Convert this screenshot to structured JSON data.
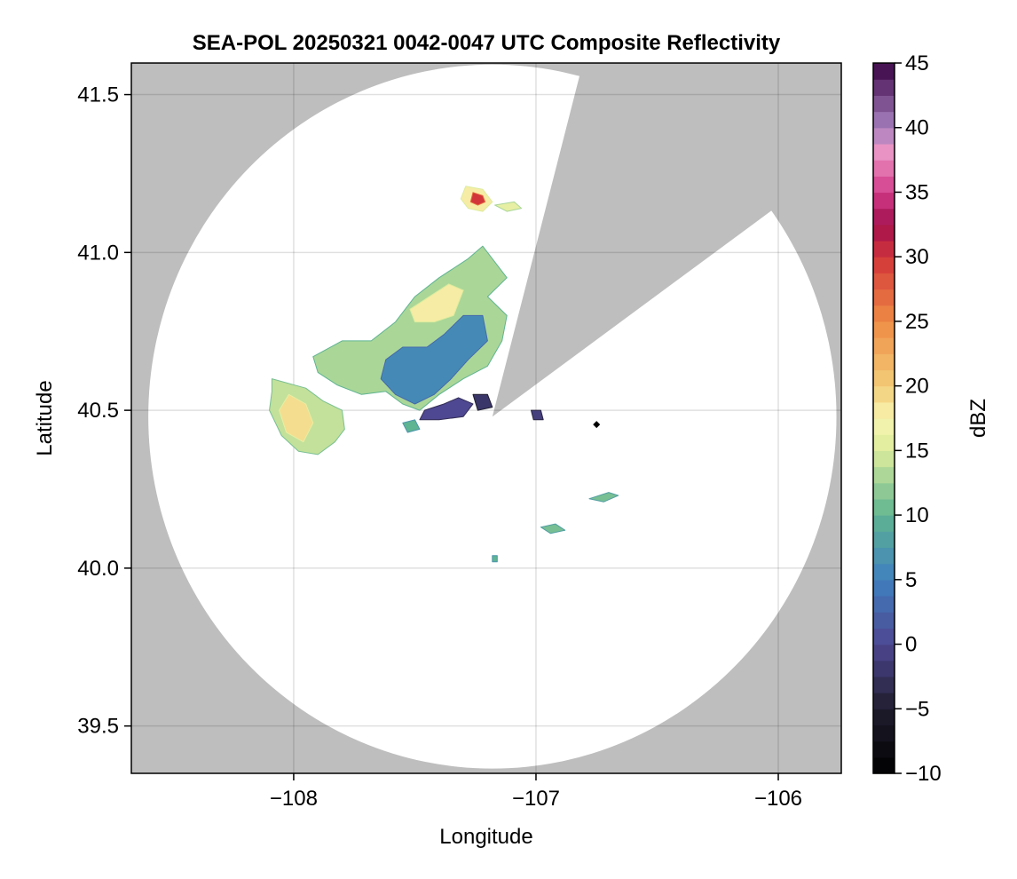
{
  "chart_data": {
    "type": "heatmap",
    "title": "SEA-POL 20250321 0042-0047 UTC Composite Reflectivity",
    "xlabel": "Longitude",
    "ylabel": "Latitude",
    "xlim": [
      -108.67,
      -105.74
    ],
    "ylim": [
      39.35,
      41.6
    ],
    "x_ticks": [
      {
        "value": -108,
        "label": "−108"
      },
      {
        "value": -107,
        "label": "−107"
      },
      {
        "value": -106,
        "label": "−106"
      }
    ],
    "y_ticks": [
      {
        "value": 39.5,
        "label": "39.5"
      },
      {
        "value": 40.0,
        "label": "40.0"
      },
      {
        "value": 40.5,
        "label": "40.5"
      },
      {
        "value": 41.0,
        "label": "41.0"
      },
      {
        "value": 41.5,
        "label": "41.5"
      }
    ],
    "grid": true,
    "no_data_color": "#bebebe",
    "coverage_color": "#ffffff",
    "radar": {
      "center_lon": -107.18,
      "center_lat": 40.48,
      "range_lon": 1.42,
      "range_lat": 1.115,
      "blocked_sectors": [
        {
          "from_lat_edge": [
            -106.83,
            41.53
          ],
          "to_lat_edge": [
            -106.05,
            41.12
          ]
        }
      ]
    },
    "site_marker": {
      "lon": -106.75,
      "lat": 40.455,
      "color": "#000000"
    },
    "echoes": [
      {
        "name": "",
        "dbz": 14,
        "points": [
          [
            -108.09,
            40.6
          ],
          [
            -107.95,
            40.57
          ],
          [
            -107.88,
            40.53
          ],
          [
            -107.8,
            40.5
          ],
          [
            -107.79,
            40.44
          ],
          [
            -107.83,
            40.4
          ],
          [
            -107.9,
            40.36
          ],
          [
            -107.98,
            40.37
          ],
          [
            -108.05,
            40.42
          ],
          [
            -108.1,
            40.5
          ],
          [
            -108.09,
            40.56
          ]
        ]
      },
      {
        "name": "",
        "dbz": 13,
        "points": [
          [
            -107.92,
            40.67
          ],
          [
            -107.8,
            40.72
          ],
          [
            -107.68,
            40.72
          ],
          [
            -107.58,
            40.78
          ],
          [
            -107.5,
            40.86
          ],
          [
            -107.4,
            40.92
          ],
          [
            -107.28,
            40.98
          ],
          [
            -107.22,
            41.02
          ],
          [
            -107.18,
            40.98
          ],
          [
            -107.12,
            40.92
          ],
          [
            -107.2,
            40.86
          ],
          [
            -107.12,
            40.8
          ],
          [
            -107.14,
            40.72
          ],
          [
            -107.2,
            40.64
          ],
          [
            -107.3,
            40.6
          ],
          [
            -107.4,
            40.55
          ],
          [
            -107.48,
            40.5
          ],
          [
            -107.55,
            40.52
          ],
          [
            -107.62,
            40.56
          ],
          [
            -107.72,
            40.55
          ],
          [
            -107.82,
            40.58
          ],
          [
            -107.9,
            40.62
          ]
        ]
      },
      {
        "name": "",
        "dbz": 6,
        "points": [
          [
            -107.62,
            40.66
          ],
          [
            -107.55,
            40.7
          ],
          [
            -107.45,
            40.7
          ],
          [
            -107.38,
            40.74
          ],
          [
            -107.3,
            40.8
          ],
          [
            -107.22,
            40.8
          ],
          [
            -107.2,
            40.72
          ],
          [
            -107.28,
            40.66
          ],
          [
            -107.35,
            40.6
          ],
          [
            -107.42,
            40.55
          ],
          [
            -107.5,
            40.52
          ],
          [
            -107.58,
            40.55
          ],
          [
            -107.64,
            40.6
          ]
        ]
      },
      {
        "name": "",
        "dbz": 18,
        "points": [
          [
            -107.52,
            40.82
          ],
          [
            -107.44,
            40.86
          ],
          [
            -107.36,
            40.9
          ],
          [
            -107.3,
            40.88
          ],
          [
            -107.34,
            40.8
          ],
          [
            -107.42,
            40.78
          ],
          [
            -107.5,
            40.78
          ]
        ]
      },
      {
        "name": "",
        "dbz": 19,
        "points": [
          [
            -108.02,
            40.55
          ],
          [
            -107.95,
            40.52
          ],
          [
            -107.92,
            40.46
          ],
          [
            -107.96,
            40.4
          ],
          [
            -108.03,
            40.43
          ],
          [
            -108.06,
            40.5
          ]
        ]
      },
      {
        "name": "",
        "dbz": 0,
        "points": [
          [
            -107.46,
            40.5
          ],
          [
            -107.38,
            40.52
          ],
          [
            -107.32,
            40.54
          ],
          [
            -107.26,
            40.52
          ],
          [
            -107.3,
            40.48
          ],
          [
            -107.4,
            40.47
          ],
          [
            -107.48,
            40.47
          ]
        ]
      },
      {
        "name": "",
        "dbz": -2,
        "points": [
          [
            -107.26,
            40.55
          ],
          [
            -107.2,
            40.55
          ],
          [
            -107.18,
            40.51
          ],
          [
            -107.24,
            40.5
          ]
        ]
      },
      {
        "name": "",
        "dbz": 18,
        "points": [
          [
            -107.29,
            41.21
          ],
          [
            -107.22,
            41.2
          ],
          [
            -107.18,
            41.16
          ],
          [
            -107.22,
            41.13
          ],
          [
            -107.28,
            41.14
          ],
          [
            -107.31,
            41.17
          ]
        ]
      },
      {
        "name": "",
        "dbz": 30,
        "points": [
          [
            -107.26,
            41.19
          ],
          [
            -107.22,
            41.18
          ],
          [
            -107.21,
            41.16
          ],
          [
            -107.24,
            41.15
          ],
          [
            -107.27,
            41.16
          ]
        ]
      },
      {
        "name": "",
        "dbz": 16,
        "points": [
          [
            -107.17,
            41.15
          ],
          [
            -107.09,
            41.16
          ],
          [
            -107.06,
            41.14
          ],
          [
            -107.12,
            41.13
          ]
        ]
      },
      {
        "name": "",
        "dbz": 11,
        "points": [
          [
            -106.78,
            40.22
          ],
          [
            -106.7,
            40.24
          ],
          [
            -106.66,
            40.23
          ],
          [
            -106.72,
            40.21
          ]
        ]
      },
      {
        "name": "",
        "dbz": 11,
        "points": [
          [
            -106.98,
            40.13
          ],
          [
            -106.92,
            40.14
          ],
          [
            -106.88,
            40.12
          ],
          [
            -106.94,
            40.11
          ]
        ]
      },
      {
        "name": "",
        "dbz": 10,
        "points": [
          [
            -107.18,
            40.04
          ],
          [
            -107.16,
            40.04
          ],
          [
            -107.16,
            40.02
          ],
          [
            -107.18,
            40.02
          ]
        ]
      },
      {
        "name": "",
        "dbz": -1,
        "points": [
          [
            -107.02,
            40.5
          ],
          [
            -106.98,
            40.5
          ],
          [
            -106.97,
            40.47
          ],
          [
            -107.01,
            40.47
          ]
        ]
      },
      {
        "name": "",
        "dbz": 10,
        "points": [
          [
            -107.55,
            40.46
          ],
          [
            -107.5,
            40.47
          ],
          [
            -107.48,
            40.44
          ],
          [
            -107.53,
            40.43
          ]
        ]
      }
    ],
    "colorbar": {
      "label": "dBZ",
      "min": -10,
      "max": 45,
      "ticks": [
        {
          "value": -10,
          "label": "−10"
        },
        {
          "value": -5,
          "label": "−5"
        },
        {
          "value": 0,
          "label": "0"
        },
        {
          "value": 5,
          "label": "5"
        },
        {
          "value": 10,
          "label": "10"
        },
        {
          "value": 15,
          "label": "15"
        },
        {
          "value": 20,
          "label": "20"
        },
        {
          "value": 25,
          "label": "25"
        },
        {
          "value": 30,
          "label": "30"
        },
        {
          "value": 35,
          "label": "35"
        },
        {
          "value": 40,
          "label": "40"
        },
        {
          "value": 45,
          "label": "45"
        }
      ],
      "stops": [
        {
          "value": -10,
          "color": "#000000"
        },
        {
          "value": -5,
          "color": "#1f1d2e"
        },
        {
          "value": 0,
          "color": "#4e4791"
        },
        {
          "value": 5,
          "color": "#3f7fbf"
        },
        {
          "value": 10,
          "color": "#5fb491"
        },
        {
          "value": 15,
          "color": "#dcec9c"
        },
        {
          "value": 17.5,
          "color": "#f8f4b0"
        },
        {
          "value": 20,
          "color": "#f2cd78"
        },
        {
          "value": 25,
          "color": "#ee8c44"
        },
        {
          "value": 30,
          "color": "#d2353a"
        },
        {
          "value": 32.5,
          "color": "#a2104e"
        },
        {
          "value": 35,
          "color": "#d23a8a"
        },
        {
          "value": 38,
          "color": "#ec94c4"
        },
        {
          "value": 40,
          "color": "#a882c0"
        },
        {
          "value": 45,
          "color": "#3a0445"
        }
      ]
    }
  }
}
